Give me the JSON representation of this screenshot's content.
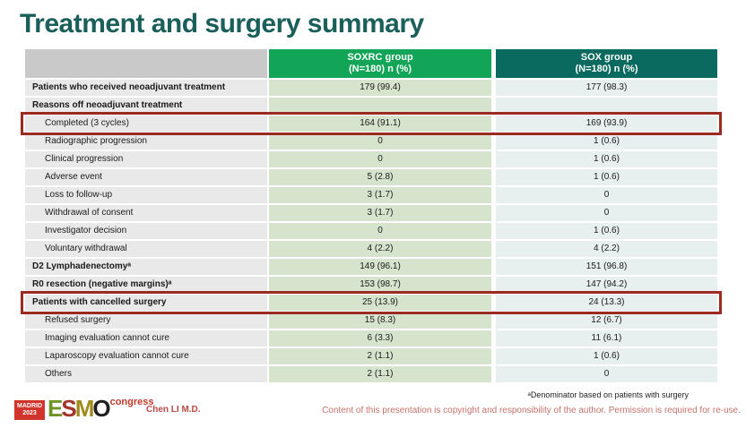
{
  "title": "Treatment and surgery summary",
  "table": {
    "columns": [
      {
        "line1": "SOXRC group",
        "line2": "(N=180)  n (%)"
      },
      {
        "line1": "SOX group",
        "line2": "(N=180)  n (%)"
      }
    ],
    "rows": [
      {
        "label": "Patients who received neoadjuvant treatment",
        "soxrc": "179 (99.4)",
        "sox": "177 (98.3)",
        "style": "bold",
        "highlighted": false
      },
      {
        "label": "Reasons off neoadjuvant treatment",
        "soxrc": "",
        "sox": "",
        "style": "bold",
        "highlighted": false
      },
      {
        "label": "Completed (3 cycles)",
        "soxrc": "164 (91.1)",
        "sox": "169 (93.9)",
        "style": "indent",
        "highlighted": true
      },
      {
        "label": "Radiographic progression",
        "soxrc": "0",
        "sox": "1 (0.6)",
        "style": "indent",
        "highlighted": false
      },
      {
        "label": "Clinical progression",
        "soxrc": "0",
        "sox": "1 (0.6)",
        "style": "indent",
        "highlighted": false
      },
      {
        "label": "Adverse event",
        "soxrc": "5 (2.8)",
        "sox": "1 (0.6)",
        "style": "indent",
        "highlighted": false
      },
      {
        "label": "Loss to follow-up",
        "soxrc": "3 (1.7)",
        "sox": "0",
        "style": "indent",
        "highlighted": false
      },
      {
        "label": "Withdrawal of consent",
        "soxrc": "3 (1.7)",
        "sox": "0",
        "style": "indent",
        "highlighted": false
      },
      {
        "label": "Investigator decision",
        "soxrc": "0",
        "sox": "1 (0.6)",
        "style": "indent",
        "highlighted": false
      },
      {
        "label": "Voluntary withdrawal",
        "soxrc": "4 (2.2)",
        "sox": "4 (2.2)",
        "style": "indent",
        "highlighted": false
      },
      {
        "label": "D2 Lymphadenectomyᵃ",
        "soxrc": "149 (96.1)",
        "sox": "151 (96.8)",
        "style": "bold",
        "highlighted": false
      },
      {
        "label": "R0 resection (negative margins)ᵃ",
        "soxrc": "153 (98.7)",
        "sox": "147 (94.2)",
        "style": "bold",
        "highlighted": false
      },
      {
        "label": "Patients with cancelled surgery",
        "soxrc": "25 (13.9)",
        "sox": "24 (13.3)",
        "style": "bold",
        "highlighted": true
      },
      {
        "label": "Refused surgery",
        "soxrc": "15 (8.3)",
        "sox": "12 (6.7)",
        "style": "indent",
        "highlighted": false
      },
      {
        "label": "Imaging evaluation cannot cure",
        "soxrc": "6 (3.3)",
        "sox": "11 (6.1)",
        "style": "indent",
        "highlighted": false
      },
      {
        "label": "Laparoscopy evaluation cannot cure",
        "soxrc": "2 (1.1)",
        "sox": "1 (0.6)",
        "style": "indent",
        "highlighted": false
      },
      {
        "label": "Others",
        "soxrc": "2 (1.1)",
        "sox": "0",
        "style": "indent",
        "highlighted": false
      }
    ]
  },
  "footer": {
    "logo": {
      "city": "MADRID",
      "year": "2023",
      "letters": [
        "E",
        "S",
        "M",
        "O"
      ],
      "congress": "congress"
    },
    "author": "Chen LI M.D.",
    "footnote": "ᵃDenominator based on patients with surgery",
    "copyright": "Content of this presentation is copyright and responsibility of the author. Permission is required for re-use."
  },
  "colors": {
    "title": "#1a5f5a",
    "header_soxrc": "#12a457",
    "header_sox": "#0b6a60",
    "label_cell": "#e9e9e9",
    "soxrc_cell": "#d6e4ce",
    "sox_cell": "#e7f0ee",
    "highlight_border": "#9c2a22",
    "author_text": "#b94a48",
    "copyright_text": "#c4736c",
    "madrid_badge": "#d0342c"
  }
}
